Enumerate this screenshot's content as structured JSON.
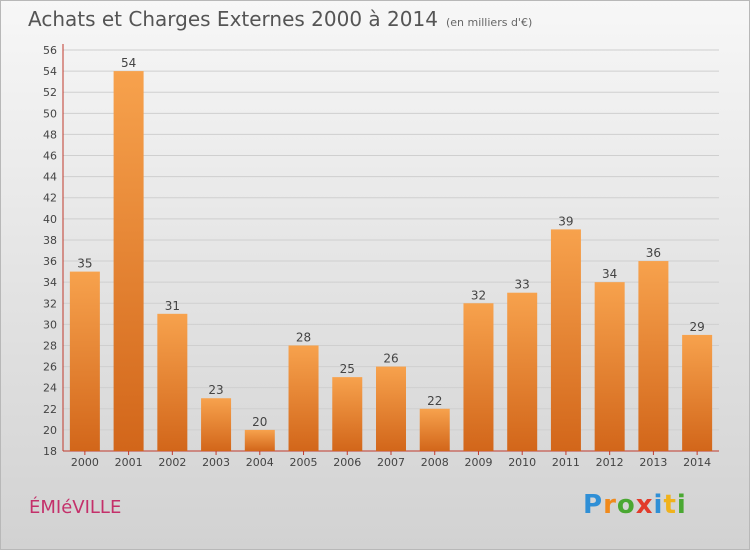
{
  "page": {
    "title": "Achats et Charges Externes 2000 à 2014",
    "subtitle": "(en milliers d'€)",
    "town": "ÉMIéVILLE",
    "logo_letters": [
      "P",
      "r",
      "o",
      "x",
      "i",
      "t",
      "i"
    ],
    "logo_colors": [
      "#2f8fd6",
      "#f08a1c",
      "#4aa832",
      "#e23b2b",
      "#2f8fd6",
      "#f0b21c",
      "#4aa832"
    ]
  },
  "colors": {
    "bar_top": "#f7a24d",
    "bar_bottom": "#d2661a",
    "axis": "#c0392b",
    "grid": "#cfcfcf",
    "text": "#444444"
  },
  "chart_data": {
    "type": "bar",
    "title": "Achats et Charges Externes 2000 à 2014",
    "subtitle": "(en milliers d'€)",
    "categories": [
      "2000",
      "2001",
      "2002",
      "2003",
      "2004",
      "2005",
      "2006",
      "2007",
      "2008",
      "2009",
      "2010",
      "2011",
      "2012",
      "2013",
      "2014"
    ],
    "values": [
      35,
      54,
      31,
      23,
      20,
      28,
      25,
      26,
      22,
      32,
      33,
      39,
      34,
      36,
      29
    ],
    "ylim": [
      18,
      56
    ],
    "yticks": [
      18,
      20,
      22,
      24,
      26,
      28,
      30,
      32,
      34,
      36,
      38,
      40,
      42,
      44,
      46,
      48,
      50,
      52,
      54,
      56
    ],
    "grid": true,
    "data_labels": true
  }
}
